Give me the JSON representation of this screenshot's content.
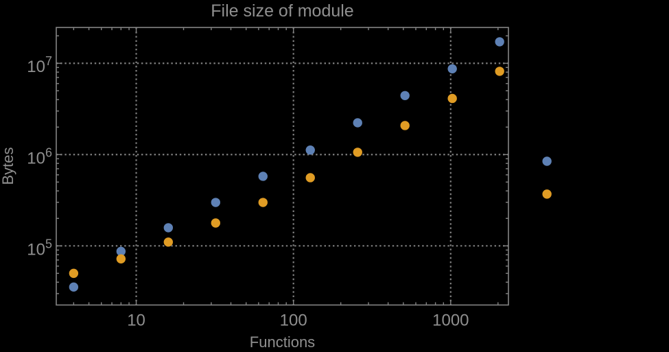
{
  "chart_data": {
    "type": "scatter",
    "title": "File size of module",
    "xlabel": "Functions",
    "ylabel": "Bytes",
    "xscale": "log",
    "yscale": "log",
    "xlim": [
      3.1,
      2330
    ],
    "ylim": [
      22500,
      24700000
    ],
    "grid": "dotted",
    "legend": "none",
    "x_ticks": [
      {
        "value": 10,
        "label": "10"
      },
      {
        "value": 100,
        "label": "100"
      },
      {
        "value": 1000,
        "label": "1000"
      }
    ],
    "y_ticks": [
      {
        "value": 100000,
        "base": "10",
        "exp": "5"
      },
      {
        "value": 1000000,
        "base": "10",
        "exp": "6"
      },
      {
        "value": 10000000,
        "base": "10",
        "exp": "7"
      }
    ],
    "x": [
      4,
      8,
      16,
      32,
      64,
      128,
      256,
      512,
      1024,
      2048,
      4096
    ],
    "series": [
      {
        "name": "blue",
        "color": "#5e81b5",
        "values": [
          35400,
          87000,
          158000,
          299000,
          578000,
          1120000,
          2230000,
          4430000,
          8700000,
          17200000,
          845000
        ]
      },
      {
        "name": "orange",
        "color": "#e09c24",
        "values": [
          50000,
          72000,
          110000,
          178000,
          299000,
          558000,
          1060000,
          2080000,
          4120000,
          8170000,
          369000
        ]
      }
    ],
    "colors": {
      "background": "#000000",
      "frame": "#848484",
      "grid": "#7f7f7f",
      "text": "#8f8f8f"
    },
    "notes": "points not clipped at plot range; last x pair drawn right of frame"
  }
}
